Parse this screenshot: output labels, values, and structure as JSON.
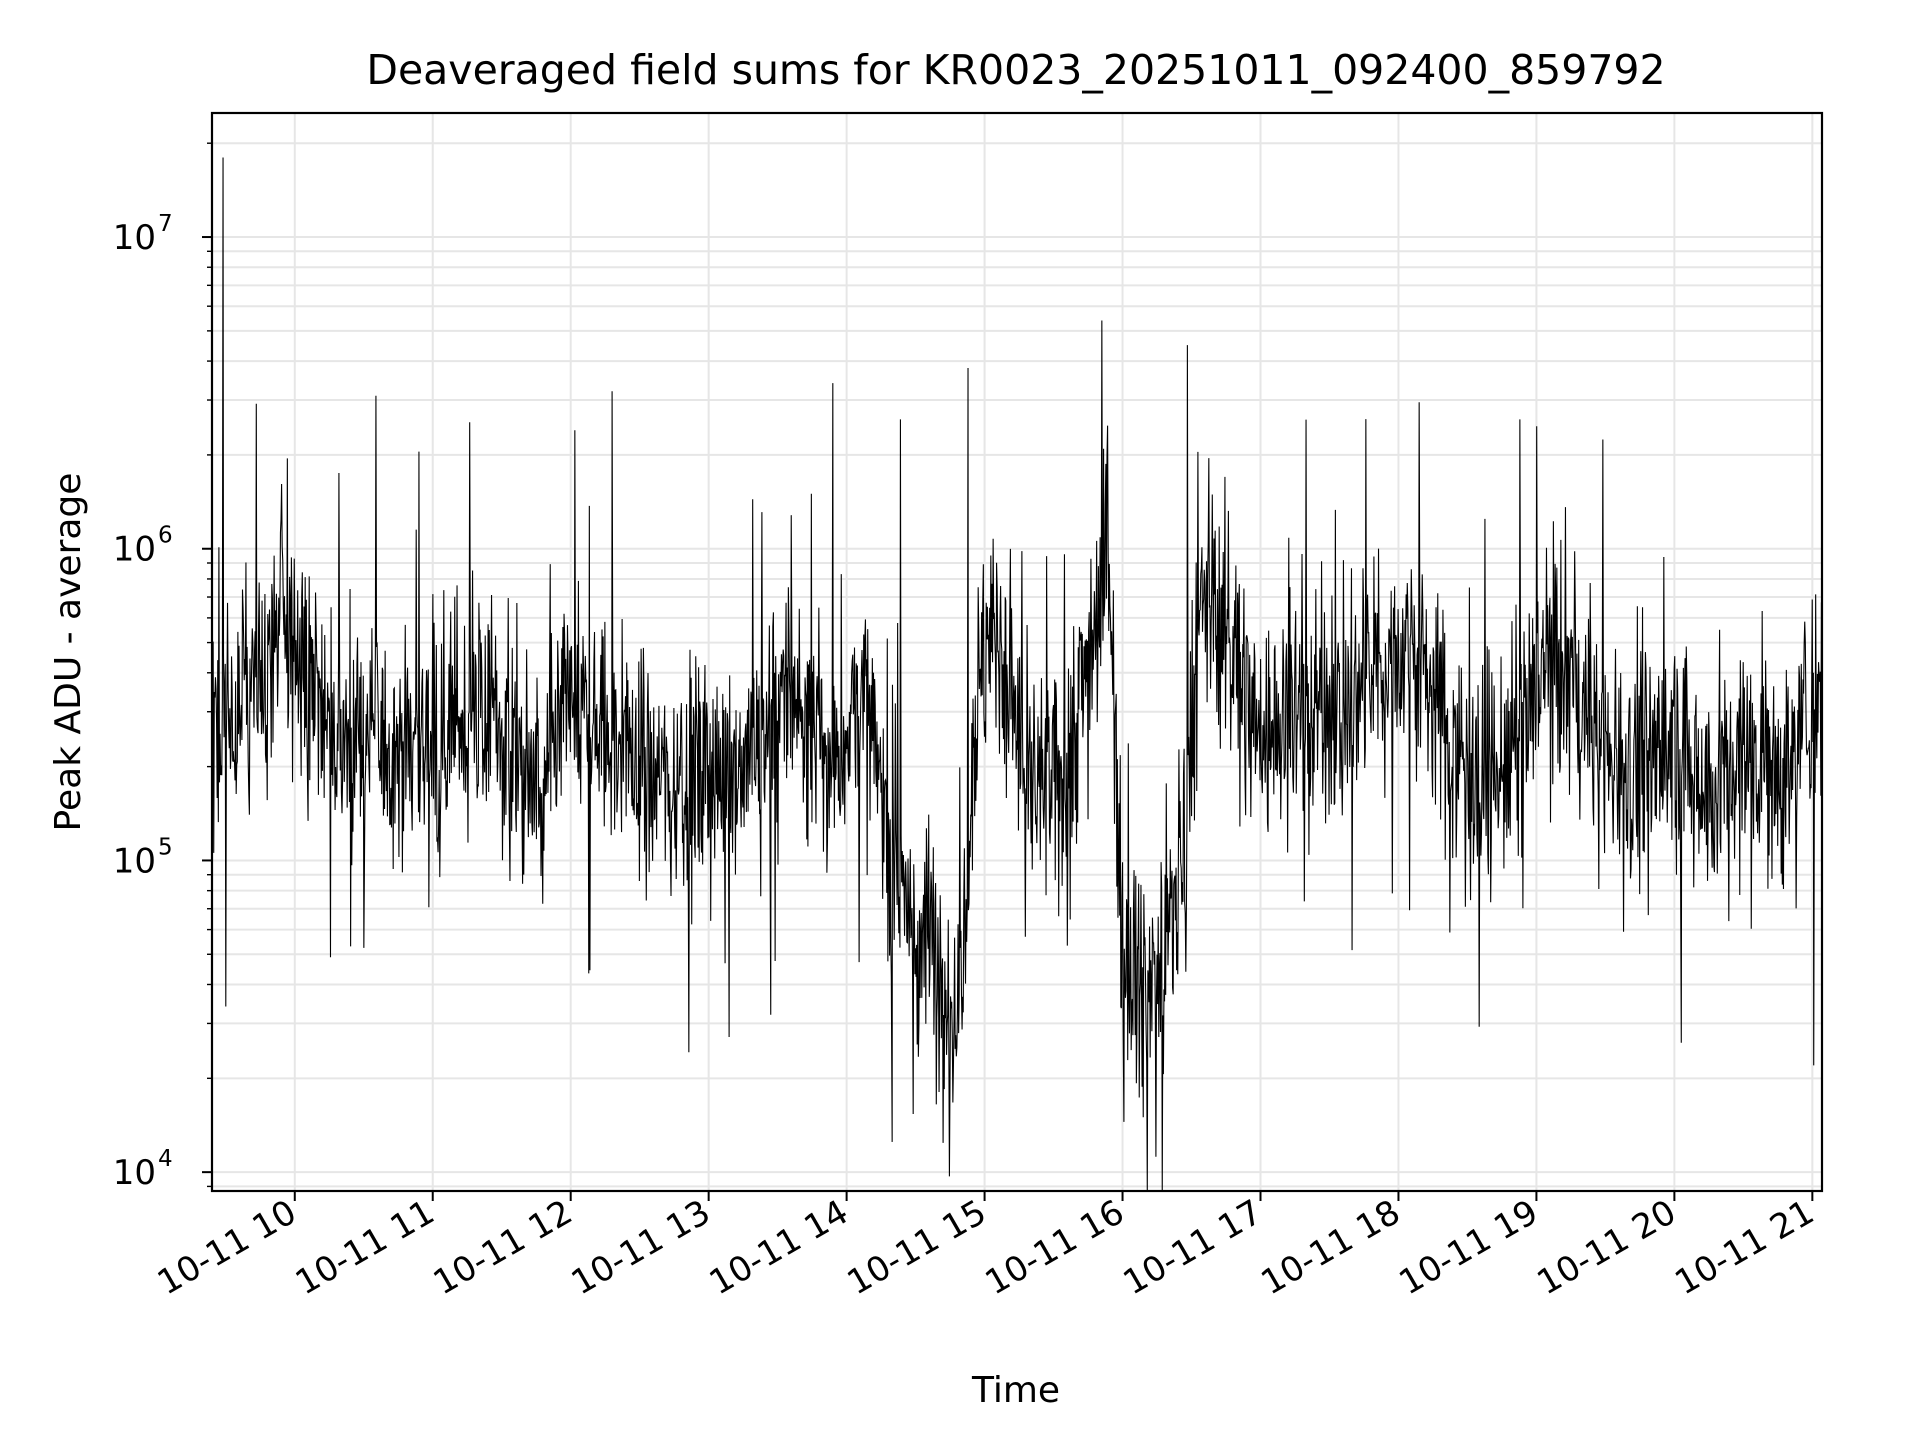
{
  "chart_data": {
    "type": "line",
    "title": "Deaveraged field sums for KR0023_20251011_092400_859792",
    "xlabel": "Time",
    "ylabel": "Peak ADU - average",
    "yscale": "log",
    "ylim": [
      8700,
      25000000
    ],
    "xlim_hours": [
      9.4,
      21.07
    ],
    "grid": true,
    "line_color": "#000000",
    "grid_color": "#e6e6e6",
    "x_ticks": [
      {
        "hour": 10,
        "label": "10-11 10"
      },
      {
        "hour": 11,
        "label": "10-11 11"
      },
      {
        "hour": 12,
        "label": "10-11 12"
      },
      {
        "hour": 13,
        "label": "10-11 13"
      },
      {
        "hour": 14,
        "label": "10-11 14"
      },
      {
        "hour": 15,
        "label": "10-11 15"
      },
      {
        "hour": 16,
        "label": "10-11 16"
      },
      {
        "hour": 17,
        "label": "10-11 17"
      },
      {
        "hour": 18,
        "label": "10-11 18"
      },
      {
        "hour": 19,
        "label": "10-11 19"
      },
      {
        "hour": 20,
        "label": "10-11 20"
      },
      {
        "hour": 21,
        "label": "10-11 21"
      }
    ],
    "y_ticks": [
      {
        "value": 10000,
        "base": "10",
        "exp": "4"
      },
      {
        "value": 100000,
        "base": "10",
        "exp": "5"
      },
      {
        "value": 1000000,
        "base": "10",
        "exp": "6"
      },
      {
        "value": 10000000,
        "base": "10",
        "exp": "7"
      }
    ],
    "series": [
      {
        "name": "Peak ADU - average",
        "envelope": {
          "hours": [
            9.4,
            9.7,
            9.9,
            10.3,
            10.7,
            11.0,
            11.4,
            11.8,
            12.0,
            12.3,
            12.7,
            13.0,
            13.3,
            13.6,
            13.9,
            14.1,
            14.3,
            14.5,
            14.65,
            14.8,
            14.95,
            15.1,
            15.3,
            15.5,
            15.65,
            15.8,
            15.9,
            16.0,
            16.15,
            16.3,
            16.45,
            16.6,
            16.8,
            17.0,
            17.3,
            17.6,
            17.9,
            18.1,
            18.4,
            18.7,
            18.9,
            19.1,
            19.4,
            19.7,
            20.0,
            20.3,
            20.6,
            20.8,
            21.07
          ],
          "median": [
            300000,
            330000,
            600000,
            250000,
            230000,
            250000,
            300000,
            150000,
            320000,
            240000,
            180000,
            180000,
            230000,
            350000,
            200000,
            350000,
            130000,
            55000,
            55000,
            30000,
            380000,
            550000,
            180000,
            160000,
            260000,
            600000,
            1000000,
            60000,
            40000,
            45000,
            120000,
            800000,
            450000,
            250000,
            320000,
            300000,
            420000,
            520000,
            230000,
            180000,
            250000,
            480000,
            260000,
            200000,
            230000,
            170000,
            240000,
            180000,
            420000
          ]
        },
        "spikes": [
          {
            "hour": 9.48,
            "value": 18000000
          },
          {
            "hour": 10.32,
            "value": 1750000
          },
          {
            "hour": 10.9,
            "value": 2050000
          },
          {
            "hour": 12.03,
            "value": 2400000
          },
          {
            "hour": 12.3,
            "value": 3200000
          },
          {
            "hour": 13.9,
            "value": 3400000
          },
          {
            "hour": 14.39,
            "value": 2600000
          },
          {
            "hour": 14.88,
            "value": 3800000
          },
          {
            "hour": 15.85,
            "value": 5400000
          },
          {
            "hour": 16.47,
            "value": 4500000
          },
          {
            "hour": 18.15,
            "value": 2950000
          },
          {
            "hour": 18.88,
            "value": 2600000
          },
          {
            "hour": 14.33,
            "value": 12500
          },
          {
            "hour": 14.65,
            "value": 16500
          },
          {
            "hour": 16.01,
            "value": 14500
          },
          {
            "hour": 16.15,
            "value": 15000
          },
          {
            "hour": 20.05,
            "value": 26000
          },
          {
            "hour": 21.01,
            "value": 22000
          },
          {
            "hour": 9.5,
            "value": 34000
          },
          {
            "hour": 13.45,
            "value": 32000
          }
        ]
      }
    ]
  }
}
